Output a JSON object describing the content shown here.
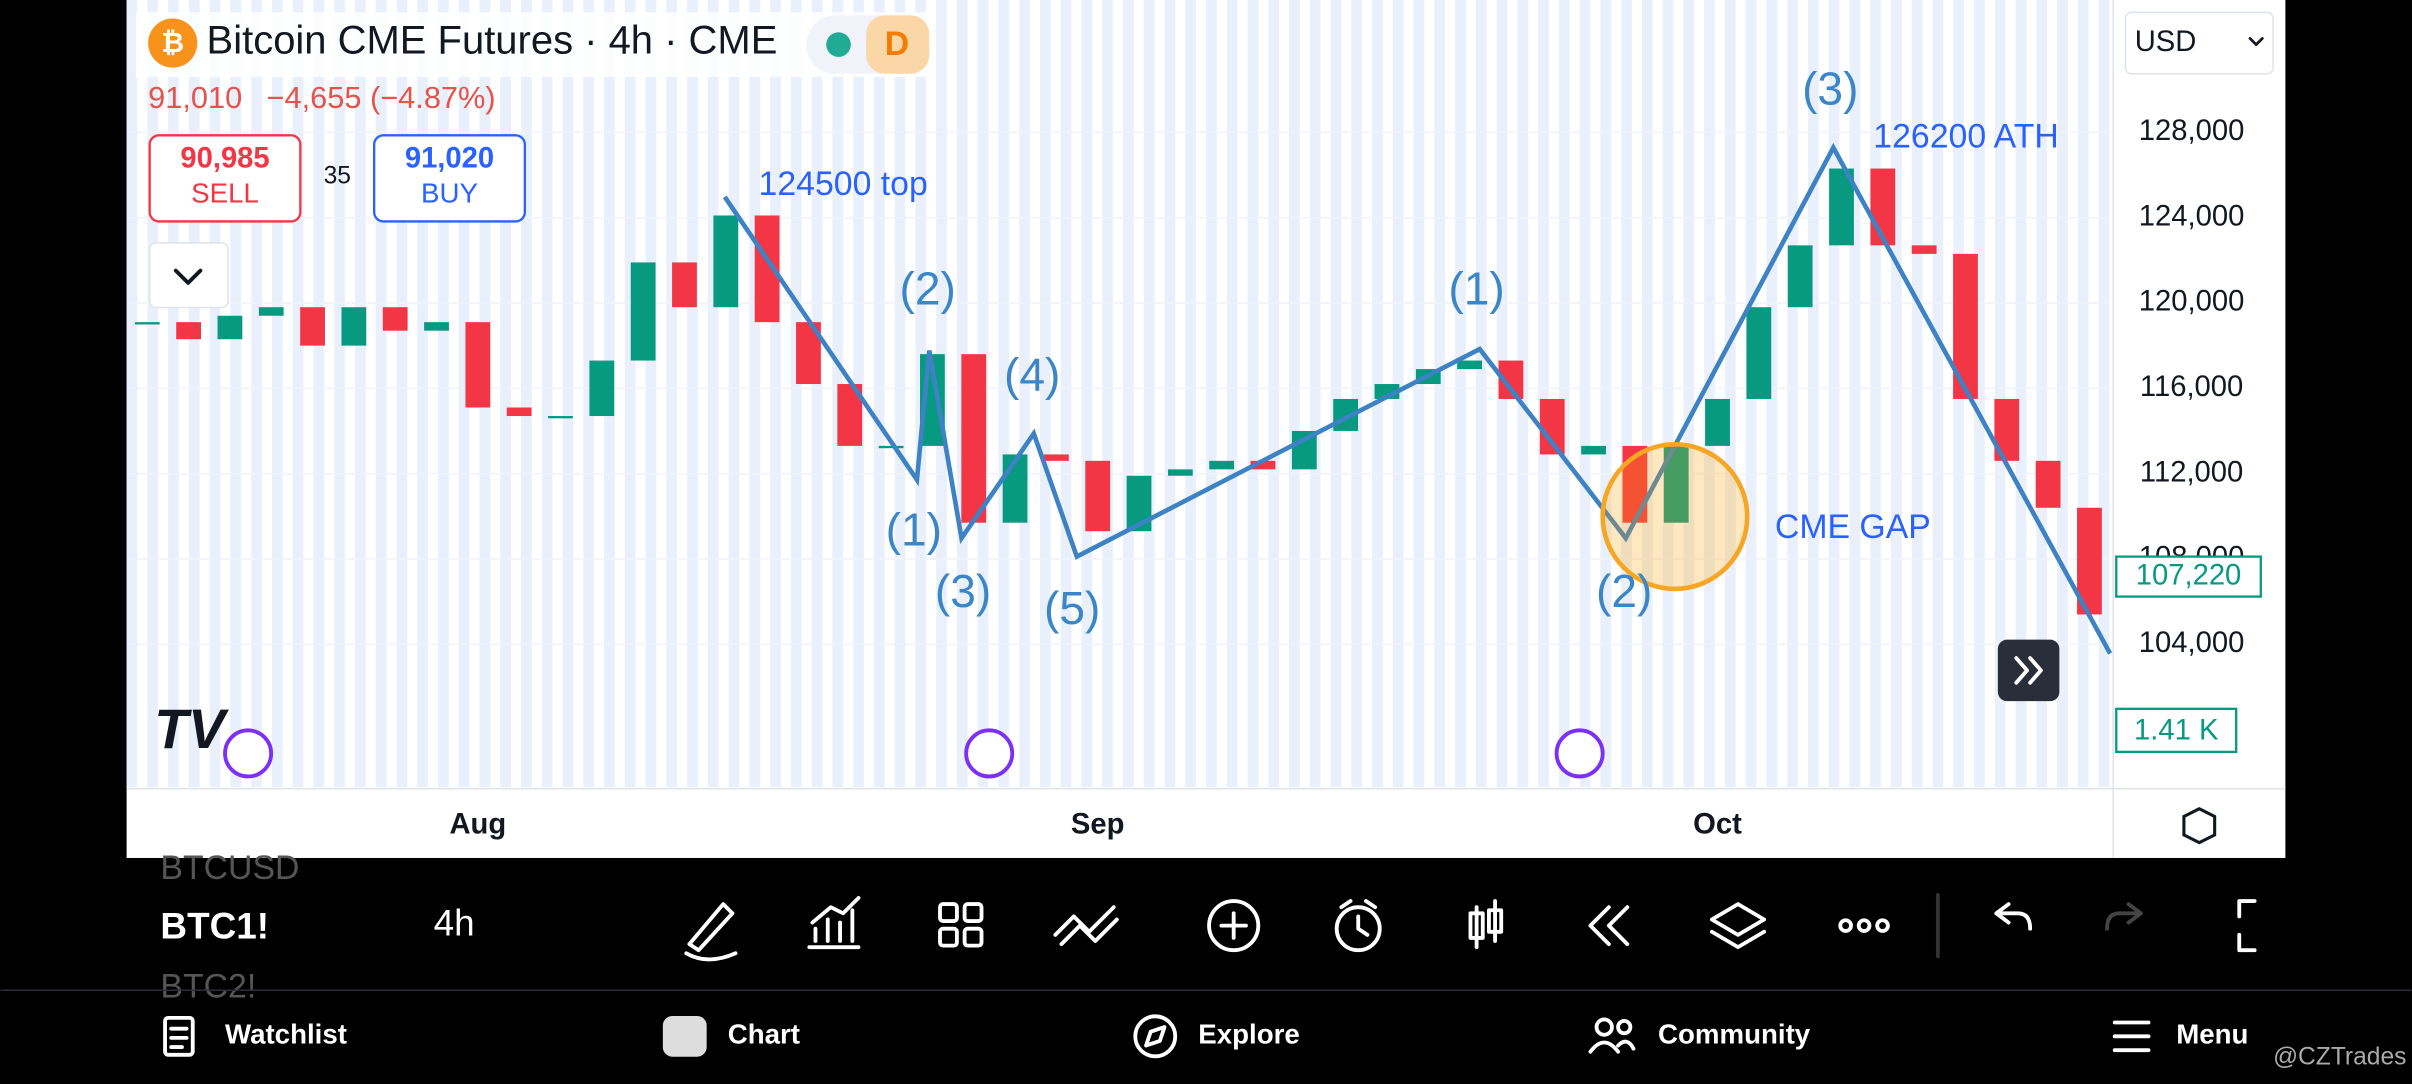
{
  "header": {
    "title": "Bitcoin CME Futures · 4h · CME",
    "badge": "D",
    "last": "91,010",
    "change": "−4,655 (−4.87%)",
    "sell_price": "90,985",
    "sell": "SELL",
    "spread": "35",
    "buy_price": "91,020",
    "buy": "BUY"
  },
  "currency": "USD",
  "chart_data": {
    "type": "candlestick",
    "categories": [
      null,
      null,
      null,
      null,
      null,
      null,
      null,
      null,
      "Aug",
      null,
      null,
      null,
      null,
      null,
      null,
      null,
      null,
      null,
      null,
      null,
      null,
      null,
      null,
      "Sep",
      null,
      null,
      null,
      null,
      null,
      null,
      null,
      null,
      null,
      null,
      null,
      null,
      null,
      null,
      "Oct",
      null,
      null,
      null,
      null,
      null,
      null,
      null,
      null,
      null
    ],
    "values": [
      119100,
      118300,
      119400,
      119800,
      118000,
      119800,
      118700,
      119100,
      115100,
      114700,
      114700,
      117300,
      121900,
      119800,
      124100,
      119100,
      116200,
      113300,
      113300,
      117600,
      109700,
      112900,
      112600,
      109300,
      111900,
      112200,
      112600,
      112200,
      114000,
      115500,
      116200,
      116900,
      117300,
      115500,
      112900,
      113300,
      109700,
      113300,
      115500,
      119800,
      122700,
      126300,
      122700,
      122300,
      115500,
      112600,
      110400,
      105400
    ],
    "up_color": "#089981",
    "down_color": "#f23645",
    "ylim": [
      97300,
      134200
    ],
    "yticks": [
      {
        "value": 104000,
        "label": "104,000"
      },
      {
        "value": 108000,
        "label": "108,000"
      },
      {
        "value": 112000,
        "label": "112,000"
      },
      {
        "value": 116000,
        "label": "116,000"
      },
      {
        "value": 120000,
        "label": "120,000"
      },
      {
        "value": 124000,
        "label": "124,000"
      },
      {
        "value": 128000,
        "label": "128,000"
      }
    ],
    "last_price_label": "107,220",
    "volume_label": "1.41 K"
  },
  "annotations": [
    "124500 top",
    "(2)",
    "(4)",
    "(1)",
    "(3)",
    "(5)",
    "(1)",
    "(2)",
    "(3)",
    "126200 ATH",
    "CME GAP"
  ],
  "toolbar": {
    "symbols": [
      "BTCUSD",
      "BTC1!",
      "BTC2!"
    ],
    "interval": "4h"
  },
  "nav": [
    "Watchlist",
    "Chart",
    "Explore",
    "Community",
    "Menu"
  ],
  "watermark": "@CZTrades"
}
